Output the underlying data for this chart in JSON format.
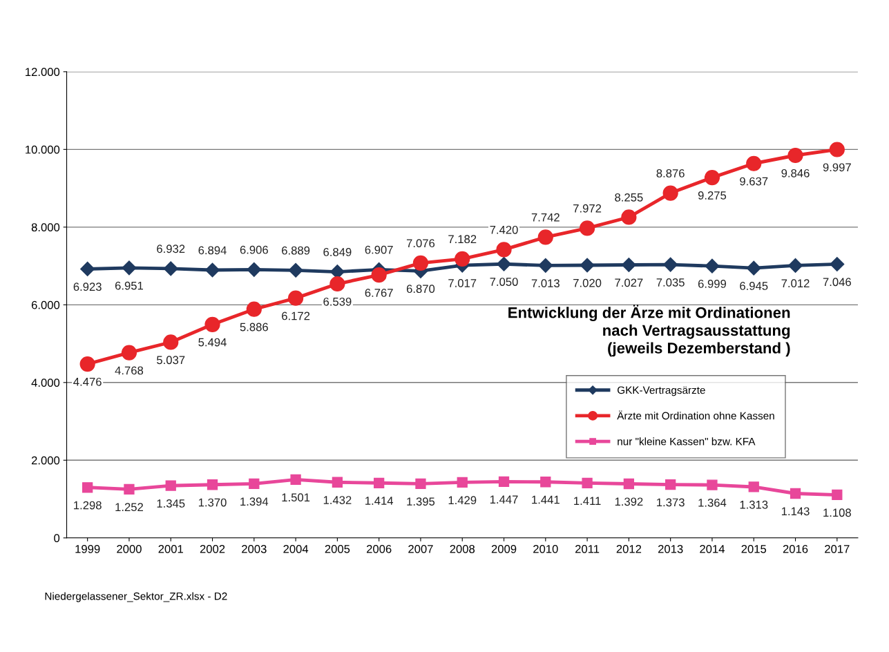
{
  "chart_data": {
    "type": "line",
    "title": "Entwicklung der Ärze mit Ordinationen\nnach Vertragsausstattung\n(jeweils Dezemberstand )",
    "categories": [
      "1999",
      "2000",
      "2001",
      "2002",
      "2003",
      "2004",
      "2005",
      "2006",
      "2007",
      "2008",
      "2009",
      "2010",
      "2011",
      "2012",
      "2013",
      "2014",
      "2015",
      "2016",
      "2017"
    ],
    "series": [
      {
        "name": "GKK-Vertragsärzte",
        "color": "#1f3a5f",
        "marker": "diamond",
        "values": [
          6923,
          6951,
          6932,
          6894,
          6906,
          6889,
          6849,
          6907,
          6870,
          7017,
          7050,
          7013,
          7020,
          7027,
          7035,
          6999,
          6945,
          7012,
          7046
        ],
        "value_labels": [
          "6.923",
          "6.951",
          "6.932",
          "6.894",
          "6.906",
          "6.889",
          "6.849",
          "6.907",
          "6.870",
          "7.017",
          "7.050",
          "7.013",
          "7.020",
          "7.027",
          "7.035",
          "6.999",
          "6.945",
          "7.012",
          "7.046"
        ]
      },
      {
        "name": "Ärzte mit Ordination ohne Kassen",
        "color": "#e8262a",
        "marker": "circle",
        "values": [
          4476,
          4768,
          5037,
          5494,
          5886,
          6172,
          6539,
          6767,
          7076,
          7182,
          7420,
          7742,
          7972,
          8255,
          8876,
          9275,
          9637,
          9846,
          9997
        ],
        "value_labels": [
          "4.476",
          "4.768",
          "5.037",
          "5.494",
          "5.886",
          "6.172",
          "6.539",
          "6.767",
          "7.076",
          "7.182",
          "7.420",
          "7.742",
          "7.972",
          "8.255",
          "8.876",
          "9.275",
          "9.637",
          "9.846",
          "9.997"
        ]
      },
      {
        "name": "nur \"kleine Kassen\" bzw. KFA",
        "color": "#e8479a",
        "marker": "square",
        "values": [
          1298,
          1252,
          1345,
          1370,
          1394,
          1501,
          1432,
          1414,
          1395,
          1429,
          1447,
          1441,
          1411,
          1392,
          1373,
          1364,
          1313,
          1143,
          1108
        ],
        "value_labels": [
          "1.298",
          "1.252",
          "1.345",
          "1.370",
          "1.394",
          "1.501",
          "1.432",
          "1.414",
          "1.395",
          "1.429",
          "1.447",
          "1.441",
          "1.411",
          "1.392",
          "1.373",
          "1.364",
          "1.313",
          "1.143",
          "1.108"
        ]
      }
    ],
    "ylim": [
      0,
      12000
    ],
    "yticks": [
      0,
      {
        "value": 2000,
        "label": "2.000"
      },
      {
        "value": 4000,
        "label": "4.000"
      },
      {
        "value": 6000,
        "label": "6.000"
      },
      {
        "value": 8000,
        "label": "8.000"
      },
      {
        "value": 10000,
        "label": "10.000"
      },
      {
        "value": 12000,
        "label": "12.000"
      }
    ],
    "grid": "y",
    "legend": "right",
    "line_style": "solid",
    "annotations": [
      "Niedergelassener_Sektor_ZR.xlsx - D2"
    ]
  }
}
